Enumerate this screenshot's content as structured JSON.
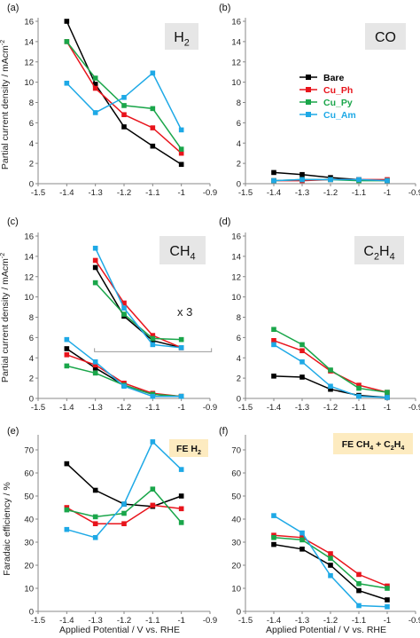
{
  "figure": {
    "ylabel_top": "Partial current density / mAcm",
    "ylabel_top_sup": "-2",
    "ylabel_bottom": "Faradaic efficiency / %",
    "xlabel": "Applied Potential / V vs. RHE"
  },
  "legend": {
    "entries": [
      {
        "name": "Bare",
        "color": "#000000"
      },
      {
        "name": "Cu_Ph",
        "color": "#e8141c"
      },
      {
        "name": "Cu_Py",
        "color": "#1aa64a"
      },
      {
        "name": "Cu_Am",
        "color": "#1ea9e6"
      }
    ]
  },
  "colors": {
    "bare": "#000000",
    "cu_ph": "#e8141c",
    "cu_py": "#1aa64a",
    "cu_am": "#1ea9e6",
    "label_box": "#e6e6e6",
    "fe_box": "#fdebc0"
  },
  "chart_data": [
    {
      "panel": "(a)",
      "type": "line",
      "label": {
        "main": "H",
        "sub": "2",
        "rest": ""
      },
      "x": [
        -1.4,
        -1.3,
        -1.2,
        -1.1,
        -1.0
      ],
      "xlim": [
        -1.5,
        -0.9
      ],
      "ylim": [
        0,
        16
      ],
      "xticks": [
        "-1.5",
        "-1.4",
        "-1.3",
        "-1.2",
        "-1.1",
        "-1",
        "-0.9"
      ],
      "yticks": [
        "0",
        "2",
        "4",
        "6",
        "8",
        "10",
        "12",
        "14",
        "16"
      ],
      "series": [
        {
          "name": "Bare",
          "values": [
            16.0,
            9.8,
            5.6,
            3.7,
            1.9
          ]
        },
        {
          "name": "Cu_Ph",
          "values": [
            14.0,
            9.4,
            6.8,
            5.5,
            3.0
          ]
        },
        {
          "name": "Cu_Py",
          "values": [
            14.0,
            10.4,
            7.7,
            7.4,
            3.4
          ]
        },
        {
          "name": "Cu_Am",
          "values": [
            9.9,
            7.0,
            8.5,
            10.9,
            5.3
          ]
        }
      ]
    },
    {
      "panel": "(b)",
      "type": "line",
      "label": {
        "main": "CO",
        "sub": "",
        "rest": ""
      },
      "x": [
        -1.4,
        -1.3,
        -1.2,
        -1.1,
        -1.0
      ],
      "xlim": [
        -1.5,
        -0.9
      ],
      "ylim": [
        0,
        16
      ],
      "xticks": [
        "-1.5",
        "-1.4",
        "-1.3",
        "-1.2",
        "-1.1",
        "-1",
        "-0.9"
      ],
      "yticks": [
        "0",
        "2",
        "4",
        "6",
        "8",
        "10",
        "12",
        "14",
        "16"
      ],
      "series": [
        {
          "name": "Bare",
          "values": [
            1.1,
            0.9,
            0.6,
            0.4,
            0.3
          ]
        },
        {
          "name": "Cu_Ph",
          "values": [
            0.3,
            0.3,
            0.4,
            0.4,
            0.4
          ]
        },
        {
          "name": "Cu_Py",
          "values": [
            0.3,
            0.4,
            0.4,
            0.3,
            0.3
          ]
        },
        {
          "name": "Cu_Am",
          "values": [
            0.3,
            0.4,
            0.4,
            0.4,
            0.3
          ]
        }
      ]
    },
    {
      "panel": "(c)",
      "type": "line",
      "label": {
        "main": "CH",
        "sub": "4",
        "rest": ""
      },
      "x": [
        -1.4,
        -1.3,
        -1.2,
        -1.1,
        -1.0
      ],
      "xlim": [
        -1.5,
        -0.9
      ],
      "ylim": [
        0,
        16
      ],
      "xticks": [
        "-1.5",
        "-1.4",
        "-1.3",
        "-1.2",
        "-1.1",
        "-1",
        "-0.9"
      ],
      "yticks": [
        "0",
        "2",
        "4",
        "6",
        "8",
        "10",
        "12",
        "14",
        "16"
      ],
      "annotation": "x 3",
      "bracket": {
        "x": [
          -1.3,
          -1.0
        ],
        "y": 4.6
      },
      "series": [
        {
          "name": "Bare",
          "values": [
            4.9,
            3.0,
            1.3,
            0.4,
            0.2
          ]
        },
        {
          "name": "Cu_Ph",
          "values": [
            4.3,
            3.3,
            1.5,
            0.5,
            0.2
          ]
        },
        {
          "name": "Cu_Py",
          "values": [
            3.2,
            2.5,
            1.3,
            0.4,
            0.2
          ]
        },
        {
          "name": "Cu_Am",
          "values": [
            5.8,
            3.6,
            1.2,
            0.2,
            0.2
          ]
        }
      ],
      "scaled_x": [
        -1.3,
        -1.2,
        -1.1,
        -1.0
      ],
      "scaled_series": [
        {
          "name": "Bare",
          "values": [
            12.9,
            8.1,
            5.7,
            5.0
          ]
        },
        {
          "name": "Cu_Ph",
          "values": [
            13.6,
            9.4,
            6.2,
            5.0
          ]
        },
        {
          "name": "Cu_Py",
          "values": [
            11.4,
            8.3,
            5.9,
            5.8
          ]
        },
        {
          "name": "Cu_Am",
          "values": [
            14.8,
            8.9,
            5.3,
            5.0
          ]
        }
      ]
    },
    {
      "panel": "(d)",
      "type": "line",
      "label": {
        "main": "C",
        "sub": "2",
        "rest": "H",
        "sub2": "4"
      },
      "x": [
        -1.4,
        -1.3,
        -1.2,
        -1.1,
        -1.0
      ],
      "xlim": [
        -1.5,
        -0.9
      ],
      "ylim": [
        0,
        16
      ],
      "xticks": [
        "-1.5",
        "-1.4",
        "-1.3",
        "-1.2",
        "-1.1",
        "-1",
        "-0.9"
      ],
      "yticks": [
        "0",
        "2",
        "4",
        "6",
        "8",
        "10",
        "12",
        "14",
        "16"
      ],
      "series": [
        {
          "name": "Bare",
          "values": [
            2.2,
            2.1,
            0.9,
            0.3,
            0.1
          ]
        },
        {
          "name": "Cu_Ph",
          "values": [
            5.7,
            4.7,
            2.7,
            1.3,
            0.6
          ]
        },
        {
          "name": "Cu_Py",
          "values": [
            6.8,
            5.3,
            2.8,
            1.0,
            0.6
          ]
        },
        {
          "name": "Cu_Am",
          "values": [
            5.3,
            3.6,
            1.2,
            0.2,
            0.1
          ]
        }
      ]
    },
    {
      "panel": "(e)",
      "type": "line",
      "label": {
        "main": "FE H",
        "sub": "2",
        "rest": ""
      },
      "x": [
        -1.4,
        -1.3,
        -1.2,
        -1.1,
        -1.0
      ],
      "xlim": [
        -1.5,
        -0.9
      ],
      "ylim": [
        0,
        75
      ],
      "xticks": [
        "-1.5",
        "-1.4",
        "-1.3",
        "-1.2",
        "-1.1",
        "-1",
        "-0.9"
      ],
      "yticks": [
        "0",
        "10",
        "20",
        "30",
        "40",
        "50",
        "60",
        "70"
      ],
      "series": [
        {
          "name": "Bare",
          "values": [
            64,
            52.5,
            46.5,
            45.5,
            50
          ]
        },
        {
          "name": "Cu_Ph",
          "values": [
            45,
            38,
            38,
            46,
            44.5
          ]
        },
        {
          "name": "Cu_Py",
          "values": [
            44,
            41,
            42.5,
            53,
            38.5
          ]
        },
        {
          "name": "Cu_Am",
          "values": [
            35.5,
            32,
            46.5,
            73.5,
            61.5
          ]
        }
      ]
    },
    {
      "panel": "(f)",
      "type": "line",
      "label": {
        "main": "FE CH",
        "sub": "4",
        "rest": " + C",
        "sub2": "2",
        "rest2": "H",
        "sub3": "4"
      },
      "x": [
        -1.4,
        -1.3,
        -1.2,
        -1.1,
        -1.0
      ],
      "xlim": [
        -1.5,
        -0.9
      ],
      "ylim": [
        0,
        75
      ],
      "xticks": [
        "-1.5",
        "-1.4",
        "-1.3",
        "-1.2",
        "-1.1",
        "-1",
        "-0.9"
      ],
      "yticks": [
        "0",
        "10",
        "20",
        "30",
        "40",
        "50",
        "60",
        "70"
      ],
      "series": [
        {
          "name": "Bare",
          "values": [
            29,
            27,
            20,
            9,
            5
          ]
        },
        {
          "name": "Cu_Ph",
          "values": [
            33,
            32,
            25,
            16,
            11
          ]
        },
        {
          "name": "Cu_Py",
          "values": [
            32,
            31,
            23,
            12,
            10
          ]
        },
        {
          "name": "Cu_Am",
          "values": [
            41.5,
            34,
            15.5,
            2.5,
            2
          ]
        }
      ]
    }
  ]
}
